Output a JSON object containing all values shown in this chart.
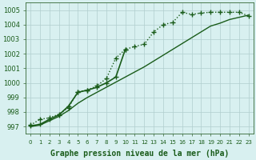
{
  "title": "Graphe pression niveau de la mer (hPa)",
  "bg_color": "#d8f0f0",
  "grid_color": "#b0cece",
  "line_color": "#1a5c1a",
  "ylim": [
    996.5,
    1005.5
  ],
  "xlim": [
    -0.5,
    23.5
  ],
  "yticks": [
    997,
    998,
    999,
    1000,
    1001,
    1002,
    1003,
    1004,
    1005
  ],
  "xticks": [
    0,
    1,
    2,
    3,
    4,
    5,
    6,
    7,
    8,
    9,
    10,
    11,
    12,
    13,
    14,
    15,
    16,
    17,
    18,
    19,
    20,
    21,
    22,
    23
  ],
  "series": [
    {
      "x": [
        0,
        1,
        2,
        3,
        4,
        5,
        6,
        7,
        8,
        9,
        10,
        11,
        12,
        13,
        14,
        15,
        16,
        17,
        18,
        19,
        20,
        21,
        22,
        23
      ],
      "y": [
        997.1,
        997.5,
        997.6,
        997.85,
        998.3,
        999.4,
        999.5,
        999.8,
        1000.3,
        1001.7,
        1002.3,
        1002.5,
        1002.65,
        1003.5,
        1004.0,
        1004.15,
        1004.85,
        1004.7,
        1004.8,
        1004.85,
        1004.85,
        1004.85,
        1004.85,
        1004.6
      ],
      "ls": ":",
      "lw": 1.0,
      "marker": "+",
      "ms": 4,
      "mew": 1.0
    },
    {
      "x": [
        0,
        1,
        2,
        3,
        4,
        5,
        6,
        7,
        8,
        9,
        10
      ],
      "y": [
        997.05,
        997.15,
        997.5,
        997.8,
        998.4,
        999.35,
        999.5,
        999.7,
        1000.0,
        1000.4,
        1002.3
      ],
      "ls": "-",
      "lw": 1.2,
      "marker": "+",
      "ms": 4,
      "mew": 1.0
    },
    {
      "x": [
        0,
        1,
        2,
        3,
        4,
        5,
        6,
        7,
        8,
        9,
        10,
        11,
        12,
        13,
        14,
        15,
        16,
        17,
        18,
        19,
        20,
        21,
        22,
        23
      ],
      "y": [
        997.0,
        997.1,
        997.4,
        997.7,
        998.1,
        998.6,
        999.0,
        999.35,
        999.7,
        1000.05,
        1000.4,
        1000.75,
        1001.1,
        1001.5,
        1001.9,
        1002.3,
        1002.7,
        1003.1,
        1003.5,
        1003.9,
        1004.1,
        1004.35,
        1004.5,
        1004.65
      ],
      "ls": "-",
      "lw": 1.0,
      "marker": null,
      "ms": 0,
      "mew": 0
    }
  ],
  "title_fontsize": 7,
  "ytick_fontsize": 6,
  "xtick_fontsize": 5
}
